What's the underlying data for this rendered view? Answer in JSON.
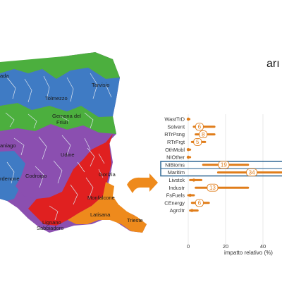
{
  "brand": {
    "text": "arı"
  },
  "map": {
    "title": "",
    "colors": {
      "green": "#4caf3e",
      "blue": "#3f7bc4",
      "purple": "#8b4fb0",
      "red": "#e02020",
      "orange": "#ee8a1c",
      "border": "#dfe6ef"
    },
    "places": [
      {
        "id": "ada",
        "text": "ada"
      },
      {
        "id": "tarvisio",
        "text": "Tarvisio"
      },
      {
        "id": "tolmezzo",
        "text": "Tolmezzo"
      },
      {
        "id": "gemona",
        "text": "Gemona del"
      },
      {
        "id": "friuli",
        "text": "Friuli"
      },
      {
        "id": "aniago",
        "text": "aniago"
      },
      {
        "id": "udine",
        "text": "Udine"
      },
      {
        "id": "codroipo",
        "text": "Codroipo"
      },
      {
        "id": "rdenone",
        "text": "rdenone"
      },
      {
        "id": "gorizia",
        "text": "Gorizia"
      },
      {
        "id": "monfalcone",
        "text": "Monfalcone"
      },
      {
        "id": "latisana",
        "text": "Latisana"
      },
      {
        "id": "lignano",
        "text": "Lignano"
      },
      {
        "id": "sabbiadoro",
        "text": "Sabbiadoro"
      },
      {
        "id": "trieste",
        "text": "Trieste"
      }
    ]
  },
  "arrow": {
    "color": "#ee8a1c"
  },
  "chart_data": {
    "type": "range",
    "title": "",
    "xlabel": "impatto relativo (%)",
    "ylabel": "",
    "xlim": [
      -2,
      50
    ],
    "xticks": [
      0,
      20,
      40
    ],
    "color": "#e07d1a",
    "highlight_color": "#3a6f9a",
    "highlight_rows": [
      "NIBioms",
      "Maritim"
    ],
    "categories": [
      "WastTrD",
      "Solvent",
      "RTrPsng",
      "RTrFrgt",
      "OthMobl",
      "NIOther",
      "NIBioms",
      "Maritim",
      "Livstck",
      "Industr",
      "FsFuels",
      "CEnergy",
      "Agrcltr"
    ],
    "series": [
      {
        "category": "WastTrD",
        "median": 0,
        "low": 0,
        "high": 0.6,
        "label": ""
      },
      {
        "category": "Solvent",
        "median": 6,
        "low": 3,
        "high": 14,
        "label": "6"
      },
      {
        "category": "RTrPsng",
        "median": 8,
        "low": 4,
        "high": 14,
        "label": "8"
      },
      {
        "category": "RTrFrgt",
        "median": 5,
        "low": 2,
        "high": 9,
        "label": "5"
      },
      {
        "category": "OthMobl",
        "median": 0,
        "low": 0,
        "high": 1,
        "label": ""
      },
      {
        "category": "NIOther",
        "median": 0,
        "low": 0,
        "high": 1,
        "label": ""
      },
      {
        "category": "NIBioms",
        "median": 19,
        "low": 8,
        "high": 32,
        "label": "19"
      },
      {
        "category": "Maritim",
        "median": 34,
        "low": 16,
        "high": 52,
        "label": "34"
      },
      {
        "category": "Livstck",
        "median": 3,
        "low": 1,
        "high": 7,
        "label": ""
      },
      {
        "category": "Industr",
        "median": 13,
        "low": 4,
        "high": 32,
        "label": "13"
      },
      {
        "category": "FsFuels",
        "median": 1,
        "low": 0,
        "high": 3,
        "label": ""
      },
      {
        "category": "CEnergy",
        "median": 6,
        "low": 2,
        "high": 11,
        "label": "6"
      },
      {
        "category": "Agrcltr",
        "median": 2,
        "low": 1,
        "high": 5,
        "label": ""
      }
    ]
  }
}
